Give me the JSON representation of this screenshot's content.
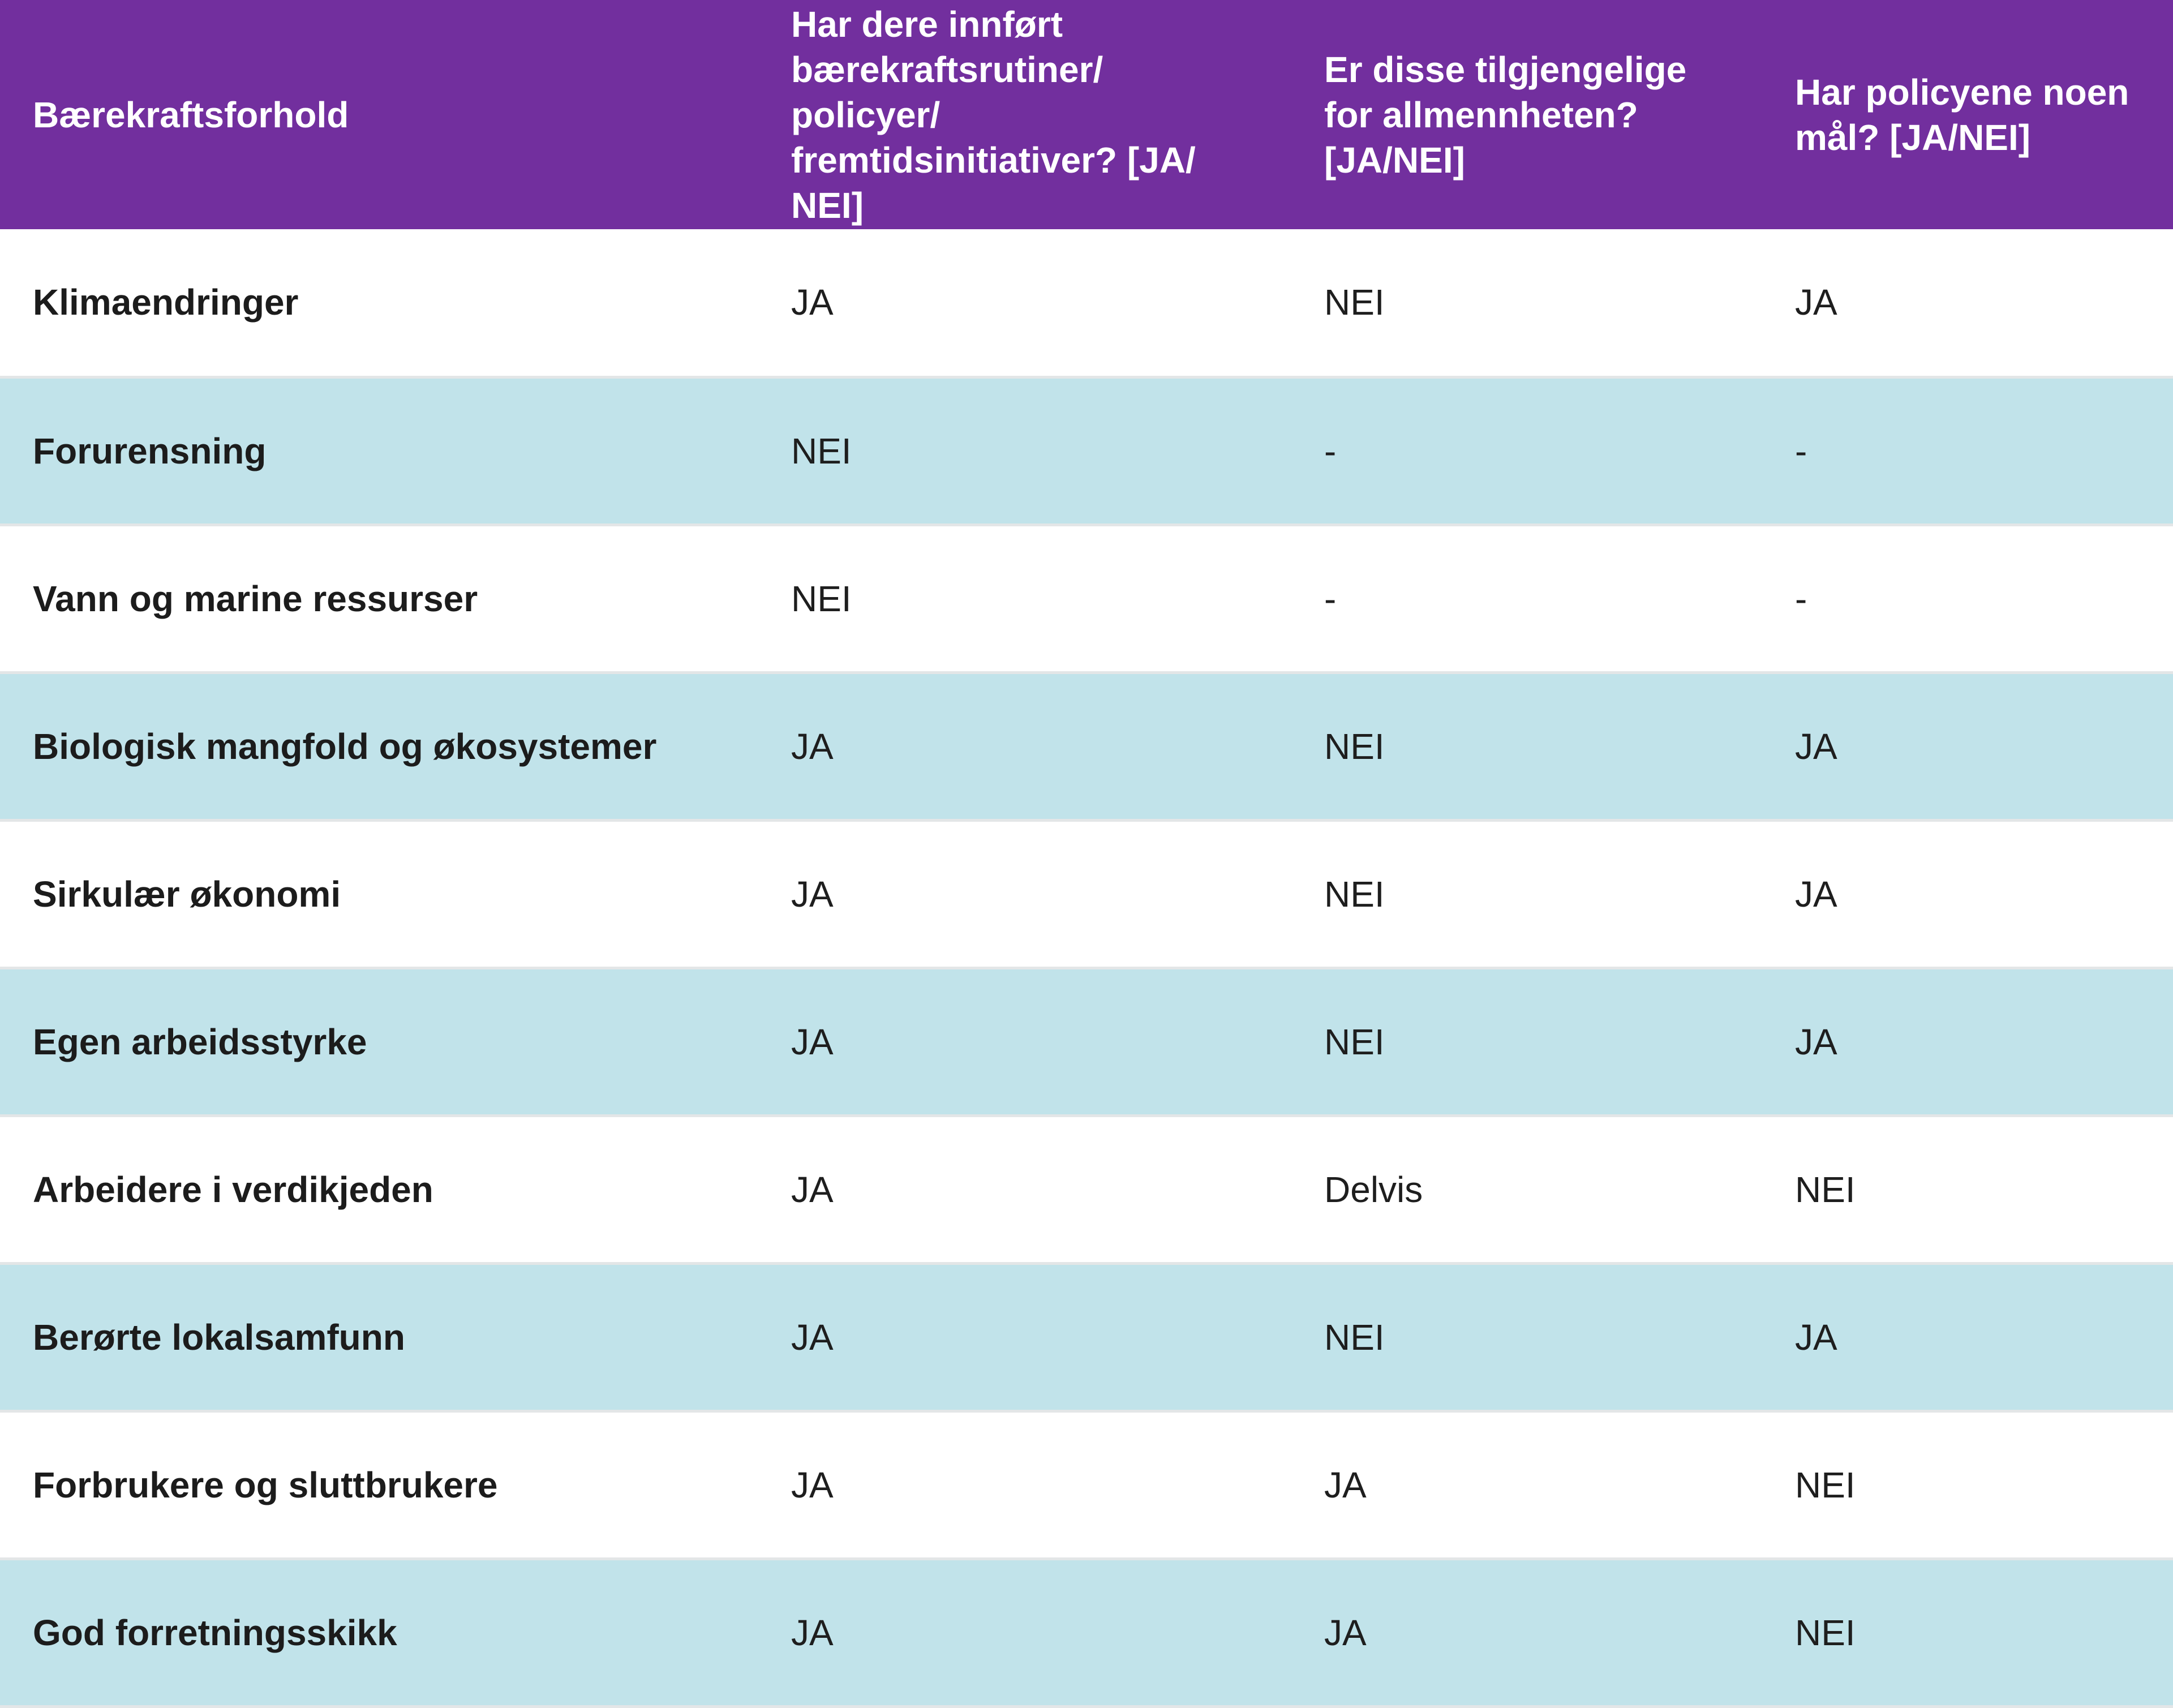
{
  "table": {
    "headers": [
      "Bærekraftsforhold",
      "Har dere innført\nbærekraftsrutiner/\npolicyer/\nfremtidsinitiativer? [JA/\nNEI]",
      "Er disse tilgjengelige\nfor allmennheten?\n[JA/NEI]",
      "Har policyene noen\nmål? [JA/NEI]"
    ],
    "rows": [
      {
        "factor": "Klimaendringer",
        "routines": "JA",
        "public": "NEI",
        "goals": "JA"
      },
      {
        "factor": "Forurensning",
        "routines": "NEI",
        "public": "-",
        "goals": "-"
      },
      {
        "factor": "Vann og marine ressurser",
        "routines": "NEI",
        "public": "-",
        "goals": "-"
      },
      {
        "factor": "Biologisk mangfold og økosystemer",
        "routines": "JA",
        "public": "NEI",
        "goals": "JA"
      },
      {
        "factor": "Sirkulær økonomi",
        "routines": "JA",
        "public": "NEI",
        "goals": "JA"
      },
      {
        "factor": "Egen arbeidsstyrke",
        "routines": "JA",
        "public": "NEI",
        "goals": "JA"
      },
      {
        "factor": "Arbeidere i verdikjeden",
        "routines": "JA",
        "public": "Delvis",
        "goals": "NEI"
      },
      {
        "factor": "Berørte lokalsamfunn",
        "routines": "JA",
        "public": "NEI",
        "goals": "JA"
      },
      {
        "factor": "Forbrukere og sluttbrukere",
        "routines": "JA",
        "public": "JA",
        "goals": "NEI"
      },
      {
        "factor": "God forretningsskikk",
        "routines": "JA",
        "public": "JA",
        "goals": "NEI"
      }
    ]
  },
  "colors": {
    "header_bg": "#722f9e",
    "header_text": "#ffffff",
    "row_alt_bg": "#c1e3ea",
    "row_bg": "#ffffff",
    "divider": "#e3e6e7"
  }
}
